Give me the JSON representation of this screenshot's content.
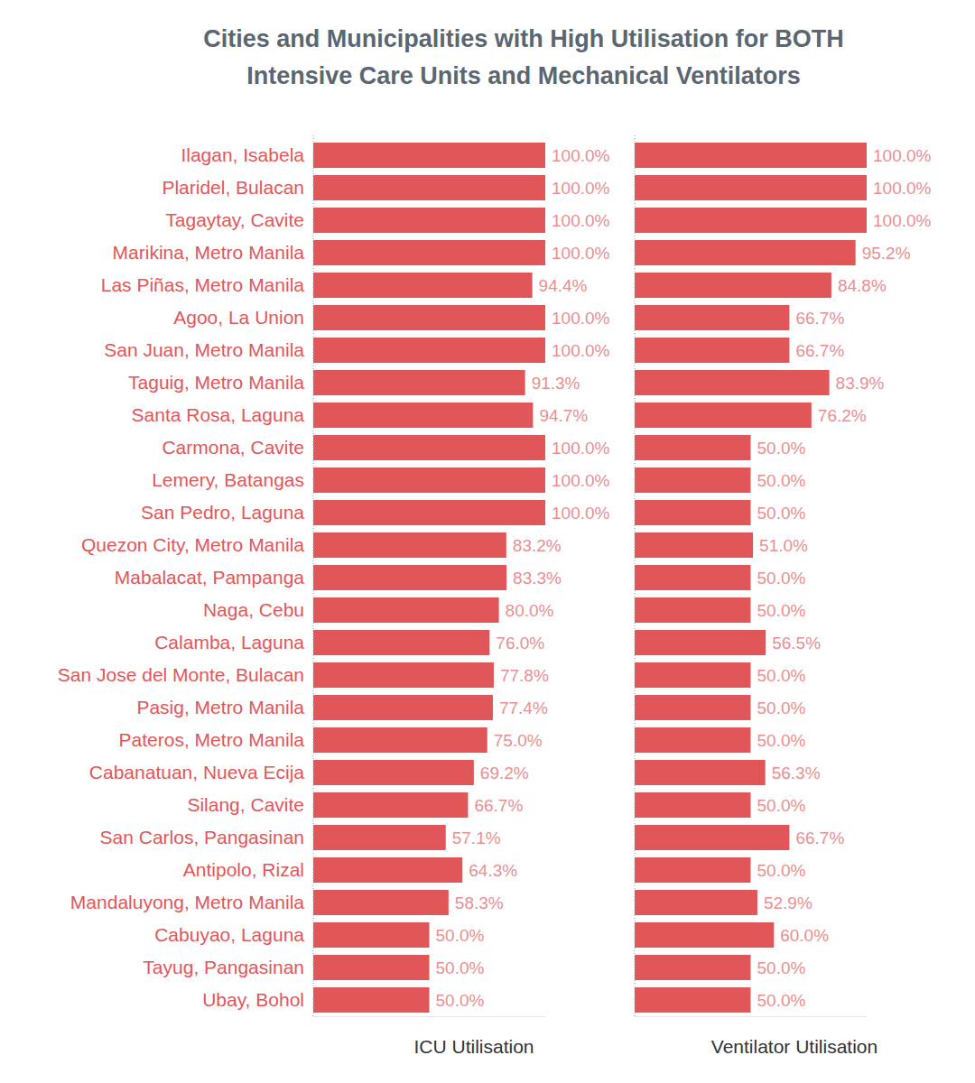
{
  "chart_data": {
    "type": "bar",
    "orientation": "horizontal",
    "title": "Cities and Municipalities with High Utilisation for BOTH Intensive Care Units and Mechanical Ventilators",
    "categories": [
      "Ilagan, Isabela",
      "Plaridel, Bulacan",
      "Tagaytay, Cavite",
      "Marikina, Metro Manila",
      "Las Piñas, Metro Manila",
      "Agoo, La Union",
      "San Juan, Metro Manila",
      "Taguig, Metro Manila",
      "Santa Rosa, Laguna",
      "Carmona, Cavite",
      "Lemery, Batangas",
      "San Pedro, Laguna",
      "Quezon City, Metro Manila",
      "Mabalacat, Pampanga",
      "Naga, Cebu",
      "Calamba, Laguna",
      "San Jose del Monte, Bulacan",
      "Pasig, Metro Manila",
      "Pateros, Metro Manila",
      "Cabanatuan, Nueva Ecija",
      "Silang, Cavite",
      "San Carlos, Pangasinan",
      "Antipolo, Rizal",
      "Mandaluyong, Metro Manila",
      "Cabuyao, Laguna",
      "Tayug, Pangasinan",
      "Ubay, Bohol"
    ],
    "series": [
      {
        "name": "ICU Utilisation",
        "color": "#e15759",
        "values": [
          100,
          100,
          100,
          100,
          94.4,
          100,
          100,
          91.3,
          94.7,
          100,
          100,
          100,
          83.2,
          83.3,
          80,
          76,
          77.8,
          77.4,
          75,
          69.2,
          66.7,
          57.1,
          64.3,
          58.3,
          50,
          50,
          50
        ],
        "value_labels": [
          "100.0%",
          "100.0%",
          "100.0%",
          "100.0%",
          "94.4%",
          "100.0%",
          "100.0%",
          "91.3%",
          "94.7%",
          "100.0%",
          "100.0%",
          "100.0%",
          "83.2%",
          "83.3%",
          "80.0%",
          "76.0%",
          "77.8%",
          "77.4%",
          "75.0%",
          "69.2%",
          "66.7%",
          "57.1%",
          "64.3%",
          "58.3%",
          "50.0%",
          "50.0%",
          "50.0%"
        ]
      },
      {
        "name": "Ventilator Utilisation",
        "color": "#e15759",
        "values": [
          100,
          100,
          100,
          95.2,
          84.8,
          66.7,
          66.7,
          83.9,
          76.2,
          50,
          50,
          50,
          51,
          50,
          50,
          56.5,
          50,
          50,
          50,
          56.3,
          50,
          66.7,
          50,
          52.9,
          60,
          50,
          50
        ],
        "value_labels": [
          "100.0%",
          "100.0%",
          "100.0%",
          "95.2%",
          "84.8%",
          "66.7%",
          "66.7%",
          "83.9%",
          "76.2%",
          "50.0%",
          "50.0%",
          "50.0%",
          "51.0%",
          "50.0%",
          "50.0%",
          "56.5%",
          "50.0%",
          "50.0%",
          "50.0%",
          "56.3%",
          "50.0%",
          "66.7%",
          "50.0%",
          "52.9%",
          "60.0%",
          "50.0%",
          "50.0%"
        ]
      }
    ],
    "xlim": [
      0,
      100
    ],
    "data_labels": true,
    "tick_labels": false,
    "grid": false
  }
}
